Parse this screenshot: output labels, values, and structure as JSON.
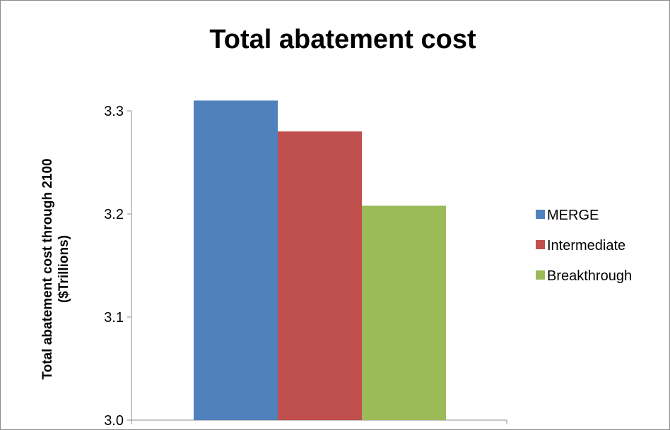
{
  "chart_data": {
    "type": "bar",
    "title": "Total abatement cost",
    "ylabel_line1": "Total abatement cost through 2100",
    "ylabel_line2": "($Trillions)",
    "xlabel": "",
    "ylim": [
      3.0,
      3.3
    ],
    "yticks": [
      "3.0",
      "3.1",
      "3.2",
      "3.3"
    ],
    "ytick_values": [
      3.0,
      3.1,
      3.2,
      3.3
    ],
    "grid": false,
    "legend_position": "right",
    "categories": [
      ""
    ],
    "series": [
      {
        "name": "MERGE",
        "values": [
          3.31
        ],
        "color": "#4f81bd"
      },
      {
        "name": "Intermediate",
        "values": [
          3.28
        ],
        "color": "#c0504d"
      },
      {
        "name": "Breakthrough",
        "values": [
          3.208
        ],
        "color": "#9bbb59"
      }
    ]
  }
}
